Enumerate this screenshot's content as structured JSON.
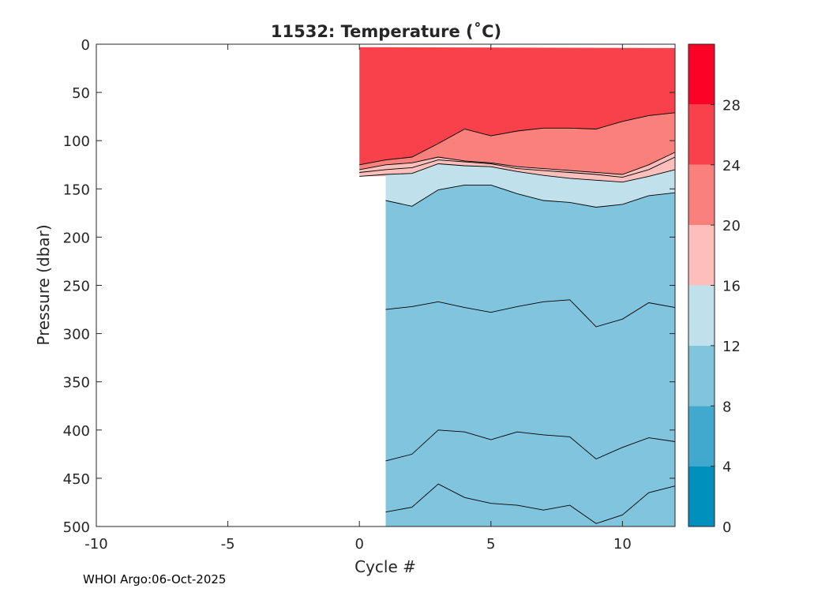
{
  "chart_data": {
    "type": "filled-contour",
    "title": "11532:  Temperature (˚C)",
    "xlabel": "Cycle #",
    "ylabel": "Pressure (dbar)",
    "xlim": [
      -10,
      12
    ],
    "ylim": [
      0,
      500
    ],
    "y_reversed": true,
    "xticks": [
      -10,
      -5,
      0,
      5,
      10
    ],
    "xtick_labels": [
      "-10",
      "-5",
      "0",
      "5",
      "10"
    ],
    "yticks": [
      0,
      50,
      100,
      150,
      200,
      250,
      300,
      350,
      400,
      450,
      500
    ],
    "ytick_labels": [
      "0",
      "50",
      "100",
      "150",
      "200",
      "250",
      "300",
      "350",
      "400",
      "450",
      "500"
    ],
    "colorbar": {
      "range": [
        0,
        32
      ],
      "ticks": [
        0,
        4,
        8,
        12,
        16,
        20,
        24,
        28
      ],
      "tick_labels": [
        "0",
        "4",
        "8",
        "12",
        "16",
        "20",
        "24",
        "28"
      ],
      "levels": [
        {
          "from": 0,
          "to": 4,
          "color": "#0090BE"
        },
        {
          "from": 4,
          "to": 8,
          "color": "#41A8CE"
        },
        {
          "from": 8,
          "to": 12,
          "color": "#80C4DE"
        },
        {
          "from": 12,
          "to": 16,
          "color": "#C0E1EC"
        },
        {
          "from": 16,
          "to": 20,
          "color": "#FCBFBB"
        },
        {
          "from": 20,
          "to": 24,
          "color": "#F9807B"
        },
        {
          "from": 24,
          "to": 28,
          "color": "#F8414B"
        },
        {
          "from": 28,
          "to": 32,
          "color": "#FB0327"
        }
      ]
    },
    "isotherms": [
      {
        "level": 24,
        "x": [
          0,
          1,
          2,
          3,
          4,
          5,
          6,
          7,
          8,
          9,
          10,
          11,
          12
        ],
        "pressure": [
          125,
          120,
          117,
          103,
          88,
          95,
          90,
          87,
          87,
          88,
          80,
          74,
          71
        ]
      },
      {
        "level": 20,
        "x": [
          0,
          1,
          2,
          3,
          4,
          5,
          6,
          7,
          8,
          9,
          10,
          11,
          12
        ],
        "pressure": [
          130,
          125,
          123,
          117,
          121,
          123,
          127,
          129,
          131,
          133,
          135,
          125,
          112
        ]
      },
      {
        "level": 18,
        "x": [
          0,
          1,
          2,
          3,
          4,
          5,
          6,
          7,
          8,
          9,
          10,
          11,
          12
        ],
        "pressure": [
          133,
          130,
          128,
          120,
          122,
          124,
          129,
          131,
          133,
          135,
          138,
          130,
          117
        ]
      },
      {
        "level": 16,
        "x": [
          0,
          1,
          2,
          3,
          4,
          5,
          6,
          7,
          8,
          9,
          10,
          11,
          12
        ],
        "pressure": [
          137,
          135,
          134,
          124,
          126,
          127,
          132,
          136,
          139,
          141,
          143,
          137,
          130
        ]
      },
      {
        "level": 12,
        "x": [
          1,
          2,
          3,
          4,
          5,
          6,
          7,
          8,
          9,
          10,
          11,
          12
        ],
        "pressure": [
          162,
          168,
          151,
          146,
          146,
          155,
          162,
          164,
          169,
          166,
          157,
          154
        ]
      },
      {
        "level": 8,
        "x": [
          1,
          2,
          3,
          4,
          5,
          6,
          7,
          8,
          9,
          10,
          11,
          12
        ],
        "pressure": [
          275,
          272,
          267,
          273,
          278,
          272,
          267,
          265,
          293,
          285,
          268,
          273
        ]
      },
      {
        "level": 7,
        "x": [
          1,
          2,
          3,
          4,
          5,
          6,
          7,
          8,
          9,
          10,
          11,
          12
        ],
        "pressure": [
          432,
          425,
          400,
          402,
          410,
          402,
          405,
          407,
          430,
          418,
          408,
          412
        ]
      },
      {
        "level": 6,
        "x": [
          1,
          2,
          3,
          4,
          5,
          6,
          7,
          8,
          9,
          10,
          11,
          12
        ],
        "pressure": [
          485,
          480,
          456,
          470,
          476,
          478,
          483,
          478,
          497,
          488,
          465,
          458
        ]
      }
    ],
    "profile_bottom": {
      "x": [
        0,
        1,
        1,
        12
      ],
      "pressure": [
        137,
        137,
        500,
        500
      ]
    }
  },
  "footer": "WHOI Argo:06-Oct-2025"
}
